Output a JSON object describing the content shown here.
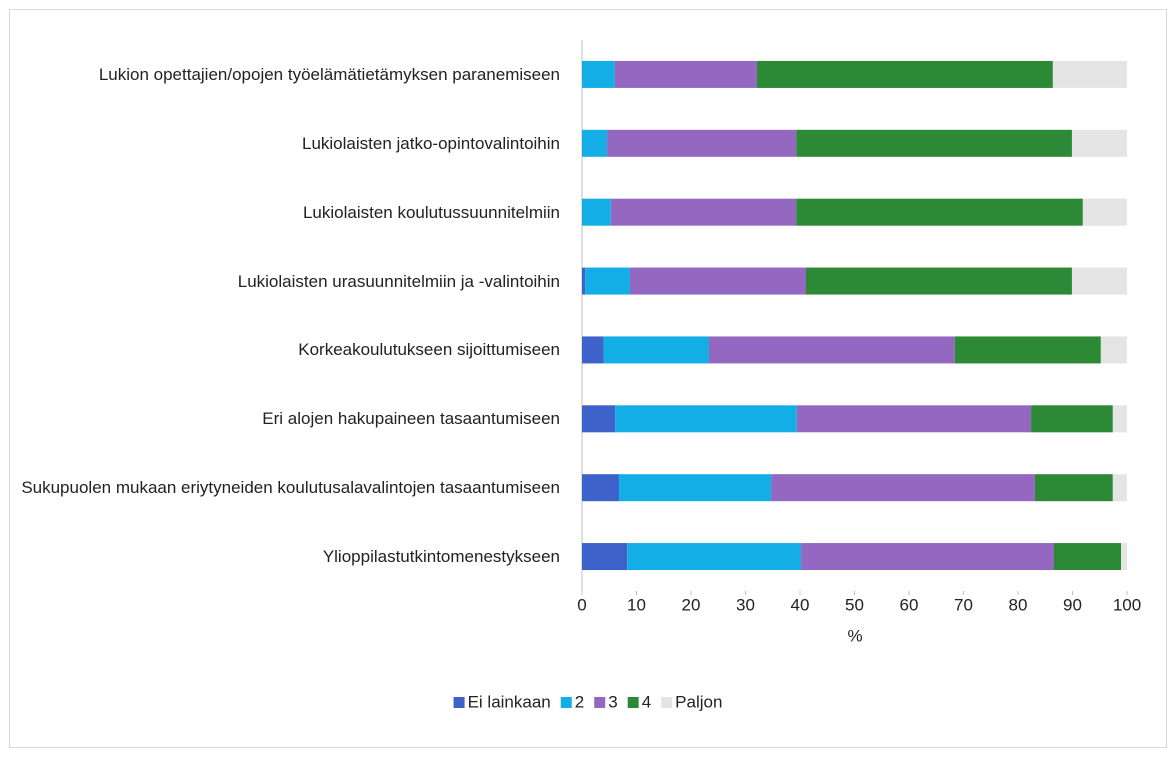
{
  "chart_data": {
    "type": "stacked-barh",
    "categories": [
      "Lukion opettajien/opojen työelämätietämyksen paranemiseen",
      "Lukiolaisten jatko-opintovalintoihin",
      "Lukiolaisten koulutussuunnitelmiin",
      "Lukiolaisten urasuunnitelmiin ja -valintoihin",
      "Korkeakoulutukseen sijoittumiseen",
      "Eri alojen hakupaineen tasaantumiseen",
      "Sukupuolen mukaan eriytyneiden koulutusalavalintojen tasaantumiseen",
      "Ylioppilastutkintomenestykseen"
    ],
    "series": [
      {
        "name": "Ei lainkaan",
        "color": "#3d62c9",
        "values": [
          0,
          0,
          0,
          0.6,
          4.0,
          6.1,
          6.8,
          8.3
        ]
      },
      {
        "name": "2",
        "color": "#14aee6",
        "values": [
          6.0,
          4.6,
          5.3,
          8.2,
          19.3,
          33.3,
          27.9,
          31.9
        ]
      },
      {
        "name": "3",
        "color": "#9467c0",
        "values": [
          26.1,
          34.7,
          34.0,
          32.3,
          45.1,
          43.0,
          48.4,
          46.4
        ]
      },
      {
        "name": "4",
        "color": "#2c8a36",
        "values": [
          54.3,
          50.6,
          52.6,
          48.8,
          26.8,
          15.0,
          14.3,
          12.3
        ]
      },
      {
        "name": "Paljon",
        "color": "#e4e4e4",
        "values": [
          13.6,
          10.1,
          8.1,
          10.1,
          4.8,
          2.6,
          2.6,
          1.1
        ]
      }
    ],
    "xlabel": "%",
    "xlim": [
      0,
      100
    ],
    "xticks": [
      0,
      10,
      20,
      30,
      40,
      50,
      60,
      70,
      80,
      90,
      100
    ],
    "legend": "bottom"
  }
}
